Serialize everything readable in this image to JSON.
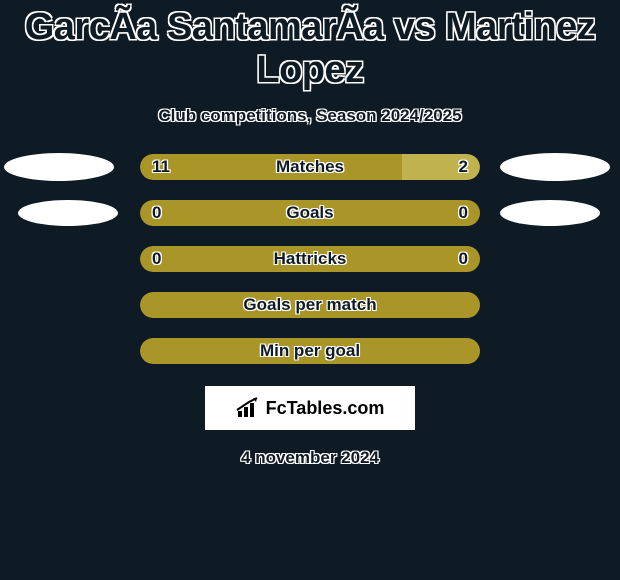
{
  "background_color": "#0f1b24",
  "text_stroke_color": "#ffffff",
  "title_color": "#0f1b24",
  "title": "GarcÃ­a SantamarÃ­a vs Martinez Lopez",
  "subtitle": "Club competitions, Season 2024/2025",
  "accent_color_main": "#a99528",
  "accent_color_alt": "#c0b24e",
  "bars": [
    {
      "label": "Matches",
      "left_value": "11",
      "right_value": "2",
      "left_pct": 77,
      "right_pct": 23,
      "left_color": "#a99528",
      "right_color": "#c0b24e",
      "show_left_ellipse": true,
      "show_right_ellipse": true,
      "ellipse_size": "large"
    },
    {
      "label": "Goals",
      "left_value": "0",
      "right_value": "0",
      "left_pct": 100,
      "right_pct": 0,
      "left_color": "#a99528",
      "right_color": "#a99528",
      "show_left_ellipse": true,
      "show_right_ellipse": true,
      "ellipse_size": "small"
    },
    {
      "label": "Hattricks",
      "left_value": "0",
      "right_value": "0",
      "left_pct": 100,
      "right_pct": 0,
      "left_color": "#a99528",
      "right_color": "#a99528",
      "show_left_ellipse": false,
      "show_right_ellipse": false
    },
    {
      "label": "Goals per match",
      "left_value": "",
      "right_value": "",
      "left_pct": 100,
      "right_pct": 0,
      "left_color": "#a99528",
      "right_color": "#a99528",
      "show_left_ellipse": false,
      "show_right_ellipse": false
    },
    {
      "label": "Min per goal",
      "left_value": "",
      "right_value": "",
      "left_pct": 100,
      "right_pct": 0,
      "left_color": "#a99528",
      "right_color": "#a99528",
      "show_left_ellipse": false,
      "show_right_ellipse": false
    }
  ],
  "logo_text": "FcTables.com",
  "date": "4 november 2024"
}
